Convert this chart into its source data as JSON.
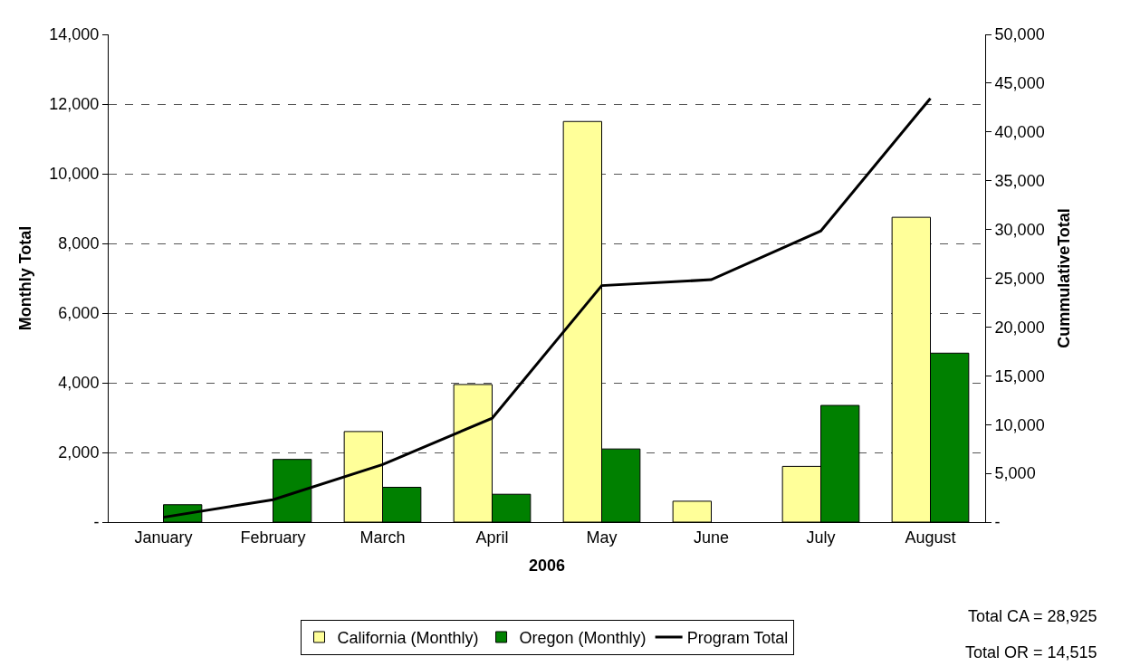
{
  "chart_data": {
    "type": "bar",
    "xlabel": "2006",
    "ylabel": "Monthly Total",
    "y2label": "CummulativeTotal",
    "categories": [
      "January",
      "February",
      "March",
      "April",
      "May",
      "June",
      "July",
      "August"
    ],
    "series": [
      {
        "name": "California (Monthly)",
        "color": "#ffff99",
        "values": [
          null,
          null,
          2600,
          3950,
          11500,
          600,
          1600,
          8750
        ]
      },
      {
        "name": "Oregon (Monthly)",
        "color": "#008000",
        "values": [
          500,
          1800,
          1000,
          800,
          2100,
          null,
          3350,
          4850
        ]
      },
      {
        "name": "Program Total",
        "type": "line",
        "axis": "y2",
        "color": "#000000",
        "values": [
          500,
          2300,
          5900,
          10650,
          24250,
          24850,
          29850,
          43440
        ]
      }
    ],
    "ylim": [
      0,
      14000
    ],
    "yticks": [
      {
        "value": 0,
        "label": "-"
      },
      {
        "value": 2000,
        "label": "2,000"
      },
      {
        "value": 4000,
        "label": "4,000"
      },
      {
        "value": 6000,
        "label": "6,000"
      },
      {
        "value": 8000,
        "label": "8,000"
      },
      {
        "value": 10000,
        "label": "10,000"
      },
      {
        "value": 12000,
        "label": "12,000"
      },
      {
        "value": 14000,
        "label": "14,000"
      }
    ],
    "y2lim": [
      0,
      50000
    ],
    "y2ticks": [
      {
        "value": 0,
        "label": "-"
      },
      {
        "value": 5000,
        "label": "5,000"
      },
      {
        "value": 10000,
        "label": "10,000"
      },
      {
        "value": 15000,
        "label": "15,000"
      },
      {
        "value": 20000,
        "label": "20,000"
      },
      {
        "value": 25000,
        "label": "25,000"
      },
      {
        "value": 30000,
        "label": "30,000"
      },
      {
        "value": 35000,
        "label": "35,000"
      },
      {
        "value": 40000,
        "label": "40,000"
      },
      {
        "value": 45000,
        "label": "45,000"
      },
      {
        "value": 50000,
        "label": "50,000"
      }
    ],
    "grid": "y",
    "legend": "bottom",
    "line_style": "solid",
    "marker": "none",
    "annotations": [
      "Total CA = 28,925",
      "Total OR = 14,515"
    ]
  }
}
